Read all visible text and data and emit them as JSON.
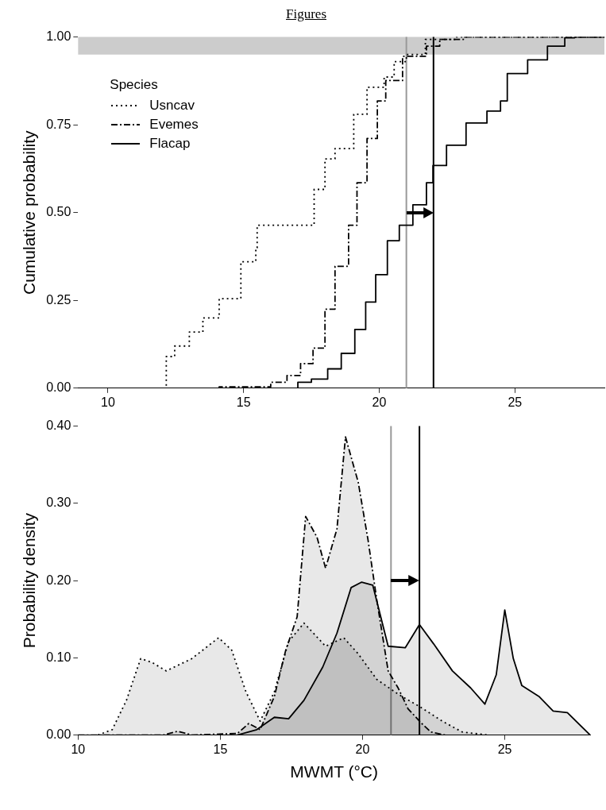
{
  "chart_data": [
    {
      "type": "step",
      "xlim": [
        8.9,
        28.3
      ],
      "xticks": [
        10,
        15,
        20,
        25
      ],
      "ylim": [
        0,
        1
      ],
      "yticks": [
        {
          "value": 0,
          "label": "0.00"
        },
        {
          "value": 0.25,
          "label": "0.25"
        },
        {
          "value": 0.5,
          "label": "0.50"
        },
        {
          "value": 0.75,
          "label": "0.75"
        },
        {
          "value": 1,
          "label": "1.00"
        }
      ],
      "ylabel": "Cumulative probability",
      "legend": "top left",
      "legend_title": "Species",
      "grid": false,
      "series": [
        {
          "name": "Usncav",
          "color": "#000000",
          "line_style": "dotted",
          "x": [
            8.9,
            11.84,
            12.15,
            12.46,
            13.0,
            13.5,
            14.1,
            14.9,
            15.45,
            15.5,
            17.0,
            17.6,
            18.0,
            18.37,
            19.06,
            19.55,
            20.18,
            20.55,
            21.0,
            21.7,
            22.85,
            28.3
          ],
          "values": [
            0,
            0,
            0.09,
            0.12,
            0.16,
            0.2,
            0.255,
            0.36,
            0.4,
            0.464,
            0.464,
            0.566,
            0.653,
            0.682,
            0.78,
            0.857,
            0.886,
            0.93,
            0.95,
            0.993,
            1.0,
            1.0
          ]
        },
        {
          "name": "Evemes",
          "color": "#000000",
          "line_style": "dashed",
          "x": [
            8.9,
            14.1,
            16.0,
            16.6,
            17.1,
            17.56,
            18.0,
            18.37,
            18.87,
            19.18,
            19.55,
            19.93,
            20.24,
            20.86,
            21.74,
            22.23,
            23.1,
            28.3
          ],
          "values": [
            0,
            0.004,
            0.017,
            0.036,
            0.07,
            0.114,
            0.225,
            0.347,
            0.464,
            0.585,
            0.711,
            0.818,
            0.876,
            0.945,
            0.974,
            0.993,
            1.0,
            1.0
          ]
        },
        {
          "name": "Flacap",
          "color": "#000000",
          "line_style": "solid",
          "x": [
            8.9,
            16.38,
            17.0,
            17.5,
            18.1,
            18.6,
            19.1,
            19.5,
            19.87,
            20.3,
            20.74,
            21.24,
            21.74,
            21.98,
            22.48,
            23.2,
            23.97,
            24.47,
            24.72,
            25.47,
            26.2,
            26.84,
            27.2,
            28.3
          ],
          "values": [
            0,
            0,
            0.017,
            0.026,
            0.055,
            0.099,
            0.167,
            0.245,
            0.323,
            0.42,
            0.464,
            0.522,
            0.585,
            0.634,
            0.692,
            0.755,
            0.789,
            0.818,
            0.896,
            0.935,
            0.974,
            0.998,
            1.0,
            1.0
          ]
        }
      ],
      "ref_lines": [
        {
          "axis": "x",
          "value": 21,
          "color": "#999999"
        },
        {
          "axis": "x",
          "value": 22,
          "color": "#000000"
        }
      ],
      "bands": [
        {
          "axis": "y",
          "from": 0.95,
          "to": 1.0,
          "color": "#cccccc"
        }
      ],
      "annotations": [
        "Figures"
      ]
    },
    {
      "type": "area",
      "xlim": [
        10,
        28
      ],
      "xticks": [
        10,
        15,
        20,
        25
      ],
      "ylim": [
        0,
        0.4
      ],
      "yticks": [
        {
          "value": 0,
          "label": "0.00"
        },
        {
          "value": 0.1,
          "label": "0.10"
        },
        {
          "value": 0.2,
          "label": "0.20"
        },
        {
          "value": 0.3,
          "label": "0.30"
        },
        {
          "value": 0.4,
          "label": "0.40"
        }
      ],
      "xlabel": "MWMT (°C)",
      "ylabel": "Probability density",
      "grid": false,
      "series": [
        {
          "color": "#000000",
          "line_style": "dotted",
          "x": [
            10.7,
            11.2,
            11.7,
            12.2,
            12.6,
            13.1,
            14.0,
            14.94,
            15.4,
            15.9,
            16.4,
            16.9,
            17.4,
            17.94,
            18.7,
            19.34,
            19.85,
            20.5,
            21.25,
            22.0,
            22.8,
            23.5,
            24.4
          ],
          "values": [
            0,
            0.007,
            0.045,
            0.099,
            0.094,
            0.083,
            0.099,
            0.126,
            0.11,
            0.056,
            0.018,
            0.056,
            0.121,
            0.145,
            0.115,
            0.126,
            0.105,
            0.072,
            0.053,
            0.037,
            0.018,
            0.004,
            0
          ]
        },
        {
          "color": "#000000",
          "line_style": "dashed",
          "x": [
            10,
            13.0,
            13.5,
            14.0,
            15.6,
            16.0,
            16.4,
            16.9,
            17.3,
            17.7,
            18.0,
            18.4,
            18.7,
            19.1,
            19.4,
            19.85,
            20.2,
            20.5,
            20.9,
            21.25,
            21.6,
            22.08,
            22.4,
            22.9
          ],
          "values": [
            0,
            0,
            0.005,
            0,
            0.002,
            0.015,
            0.007,
            0.05,
            0.11,
            0.153,
            0.283,
            0.256,
            0.216,
            0.267,
            0.386,
            0.327,
            0.251,
            0.175,
            0.083,
            0.061,
            0.034,
            0.015,
            0.004,
            0
          ]
        },
        {
          "color": "#000000",
          "line_style": "solid",
          "x": [
            15.6,
            16.28,
            16.9,
            17.4,
            17.94,
            18.6,
            19.1,
            19.6,
            19.97,
            20.36,
            20.9,
            21.5,
            22.0,
            22.5,
            23.16,
            23.8,
            24.3,
            24.7,
            25.0,
            25.3,
            25.6,
            26.2,
            26.7,
            27.2,
            28.0
          ],
          "values": [
            0,
            0.007,
            0.023,
            0.021,
            0.045,
            0.088,
            0.132,
            0.191,
            0.198,
            0.194,
            0.115,
            0.113,
            0.143,
            0.118,
            0.083,
            0.061,
            0.04,
            0.078,
            0.162,
            0.099,
            0.064,
            0.05,
            0.031,
            0.029,
            0
          ]
        }
      ],
      "ref_lines": [
        {
          "axis": "x",
          "value": 21,
          "color": "#999999"
        },
        {
          "axis": "x",
          "value": 22,
          "color": "#000000"
        }
      ]
    }
  ]
}
